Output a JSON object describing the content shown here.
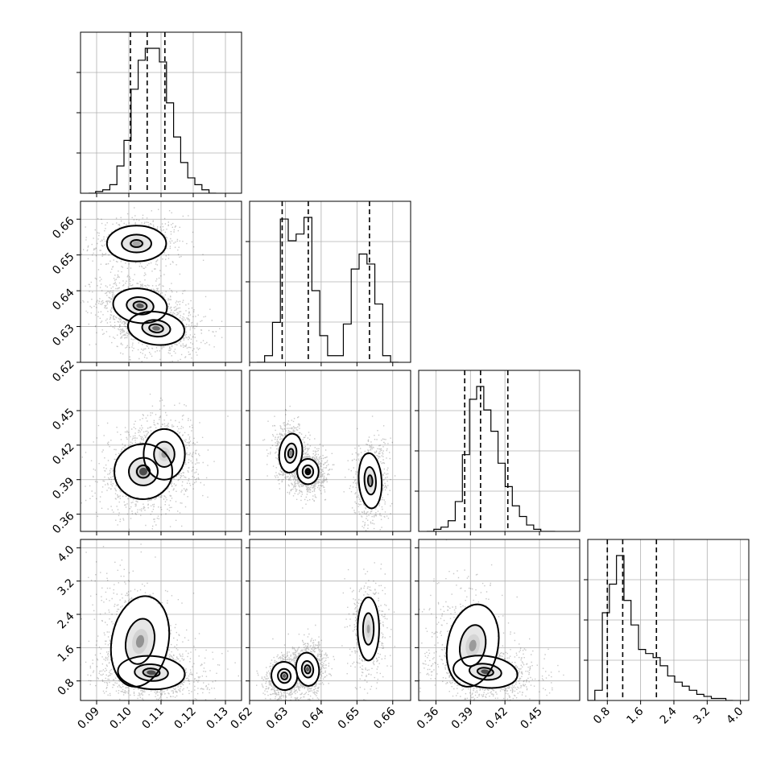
{
  "chart_data": {
    "type": "corner",
    "grid": true,
    "parameters": [
      {
        "range": [
          0.085,
          0.135
        ],
        "ticks": [
          0.09,
          0.1,
          0.11,
          0.12,
          0.13
        ],
        "tick_labels": [
          "0.09",
          "0.10",
          "0.11",
          "0.12",
          "0.13"
        ],
        "quantiles": [
          0.1005,
          0.1057,
          0.1112
        ],
        "histogram": {
          "bin_edges": [
            0.0875,
            0.0897,
            0.0919,
            0.0941,
            0.0963,
            0.0985,
            0.1007,
            0.1029,
            0.1051,
            0.1073,
            0.1095,
            0.1117,
            0.1139,
            0.1161,
            0.1183,
            0.1205,
            0.1227,
            0.1249,
            0.1271
          ],
          "counts": [
            0.0,
            0.01,
            0.02,
            0.05,
            0.16,
            0.31,
            0.61,
            0.78,
            0.85,
            0.85,
            0.77,
            0.53,
            0.33,
            0.18,
            0.09,
            0.05,
            0.02,
            0.0
          ]
        }
      },
      {
        "range": [
          0.62,
          0.665
        ],
        "ticks": [
          0.62,
          0.63,
          0.64,
          0.65,
          0.66
        ],
        "tick_labels": [
          "0.62",
          "0.63",
          "0.64",
          "0.65",
          "0.66"
        ],
        "quantiles": [
          0.6291,
          0.6364,
          0.6535
        ],
        "histogram": {
          "bin_edges": [
            0.622,
            0.6242,
            0.6264,
            0.6286,
            0.6308,
            0.633,
            0.6352,
            0.6374,
            0.6396,
            0.6418,
            0.644,
            0.6462,
            0.6484,
            0.6506,
            0.6528,
            0.655,
            0.6572,
            0.6594,
            0.6616
          ],
          "counts": [
            0.0,
            0.04,
            0.24,
            0.86,
            0.73,
            0.77,
            0.87,
            0.43,
            0.16,
            0.04,
            0.04,
            0.23,
            0.56,
            0.65,
            0.59,
            0.35,
            0.04,
            0.0
          ]
        }
      },
      {
        "range": [
          0.345,
          0.485
        ],
        "ticks": [
          0.36,
          0.39,
          0.42,
          0.45
        ],
        "tick_labels": [
          "0.36",
          "0.39",
          "0.42",
          "0.45"
        ],
        "quantiles": [
          0.385,
          0.3988,
          0.4225
        ],
        "histogram": {
          "bin_edges": [
            0.352,
            0.3582,
            0.3644,
            0.3706,
            0.3768,
            0.383,
            0.3892,
            0.3954,
            0.4016,
            0.4078,
            0.414,
            0.4202,
            0.4264,
            0.4326,
            0.4388,
            0.445,
            0.4512,
            0.4574,
            0.4636
          ],
          "counts": [
            0.0,
            0.01,
            0.02,
            0.05,
            0.14,
            0.36,
            0.62,
            0.68,
            0.57,
            0.47,
            0.32,
            0.21,
            0.12,
            0.07,
            0.03,
            0.01,
            0.0,
            0.0
          ]
        }
      },
      {
        "range": [
          0.33,
          4.2
        ],
        "ticks": [
          0.8,
          1.6,
          2.4,
          3.2,
          4.0
        ],
        "tick_labels": [
          "0.8",
          "1.6",
          "2.4",
          "3.2",
          "4.0"
        ],
        "quantiles": [
          0.8,
          1.17,
          1.98
        ],
        "histogram": {
          "bin_edges": [
            0.33,
            0.5,
            0.68,
            0.85,
            1.02,
            1.2,
            1.37,
            1.55,
            1.72,
            1.9,
            2.07,
            2.25,
            2.42,
            2.6,
            2.77,
            2.95,
            3.12,
            3.3,
            3.47,
            3.65,
            3.82
          ],
          "counts": [
            0.0,
            0.05,
            0.43,
            0.57,
            0.71,
            0.49,
            0.37,
            0.25,
            0.23,
            0.21,
            0.17,
            0.12,
            0.09,
            0.07,
            0.05,
            0.03,
            0.02,
            0.01,
            0.01,
            0.0
          ]
        }
      }
    ],
    "pairs": [
      {
        "row": 1,
        "col": 0,
        "modes": [
          {
            "cx": 0.1024,
            "cy": 0.6532,
            "sx": 0.0046,
            "sy": 0.0025,
            "rho": 0.0,
            "levels": [
              2.0,
              1.0,
              0.4
            ],
            "peak": 0.35
          },
          {
            "cx": 0.1035,
            "cy": 0.6358,
            "sx": 0.0042,
            "sy": 0.0024,
            "rho": -0.2,
            "levels": [
              2.0,
              1.0,
              0.5
            ],
            "peak": 0.85
          },
          {
            "cx": 0.1085,
            "cy": 0.6295,
            "sx": 0.0044,
            "sy": 0.0023,
            "rho": -0.2,
            "levels": [
              2.0,
              1.0,
              0.5
            ],
            "peak": 0.7
          }
        ]
      },
      {
        "row": 2,
        "col": 0,
        "modes": [
          {
            "cx": 0.1045,
            "cy": 0.397,
            "sx": 0.0045,
            "sy": 0.012,
            "rho": 0.1,
            "levels": [
              2.0,
              1.0,
              0.45
            ],
            "peak": 0.95
          },
          {
            "cx": 0.111,
            "cy": 0.412,
            "sx": 0.0032,
            "sy": 0.011,
            "rho": 0.0,
            "levels": [
              2.0,
              1.0
            ],
            "peak": 0.4
          }
        ]
      },
      {
        "row": 2,
        "col": 1,
        "modes": [
          {
            "cx": 0.6315,
            "cy": 0.413,
            "sx": 0.0016,
            "sy": 0.0085,
            "rho": -0.2,
            "levels": [
              2.0,
              1.0,
              0.45
            ],
            "peak": 0.55
          },
          {
            "cx": 0.6363,
            "cy": 0.397,
            "sx": 0.0015,
            "sy": 0.0055,
            "rho": 0.0,
            "levels": [
              2.0,
              1.0,
              0.45,
              0.2
            ],
            "peak": 0.95
          },
          {
            "cx": 0.6537,
            "cy": 0.389,
            "sx": 0.0016,
            "sy": 0.012,
            "rho": 0.1,
            "levels": [
              2.0,
              1.0,
              0.4
            ],
            "peak": 0.45
          }
        ]
      },
      {
        "row": 3,
        "col": 0,
        "modes": [
          {
            "cx": 0.1035,
            "cy": 1.75,
            "sx": 0.0044,
            "sy": 0.55,
            "rho": -0.3,
            "levels": [
              2.0,
              1.0
            ],
            "peak": 0.45
          },
          {
            "cx": 0.107,
            "cy": 1.0,
            "sx": 0.0052,
            "sy": 0.2,
            "rho": -0.1,
            "levels": [
              2.0,
              1.0,
              0.5
            ],
            "peak": 0.95
          }
        ]
      },
      {
        "row": 3,
        "col": 1,
        "modes": [
          {
            "cx": 0.6297,
            "cy": 0.92,
            "sx": 0.0018,
            "sy": 0.17,
            "rho": 0.3,
            "levels": [
              2.0,
              1.0,
              0.5
            ],
            "peak": 0.8
          },
          {
            "cx": 0.6362,
            "cy": 1.08,
            "sx": 0.0016,
            "sy": 0.2,
            "rho": 0.2,
            "levels": [
              2.0,
              1.0,
              0.5
            ],
            "peak": 0.85
          },
          {
            "cx": 0.6532,
            "cy": 2.05,
            "sx": 0.0015,
            "sy": 0.38,
            "rho": 0.0,
            "levels": [
              2.0,
              1.0
            ],
            "peak": 0.35
          }
        ]
      },
      {
        "row": 3,
        "col": 2,
        "modes": [
          {
            "cx": 0.392,
            "cy": 1.65,
            "sx": 0.011,
            "sy": 0.5,
            "rho": -0.3,
            "levels": [
              2.0,
              1.0
            ],
            "peak": 0.4
          },
          {
            "cx": 0.403,
            "cy": 1.02,
            "sx": 0.014,
            "sy": 0.19,
            "rho": -0.2,
            "levels": [
              2.0,
              1.0,
              0.5
            ],
            "peak": 0.95
          }
        ]
      }
    ]
  }
}
